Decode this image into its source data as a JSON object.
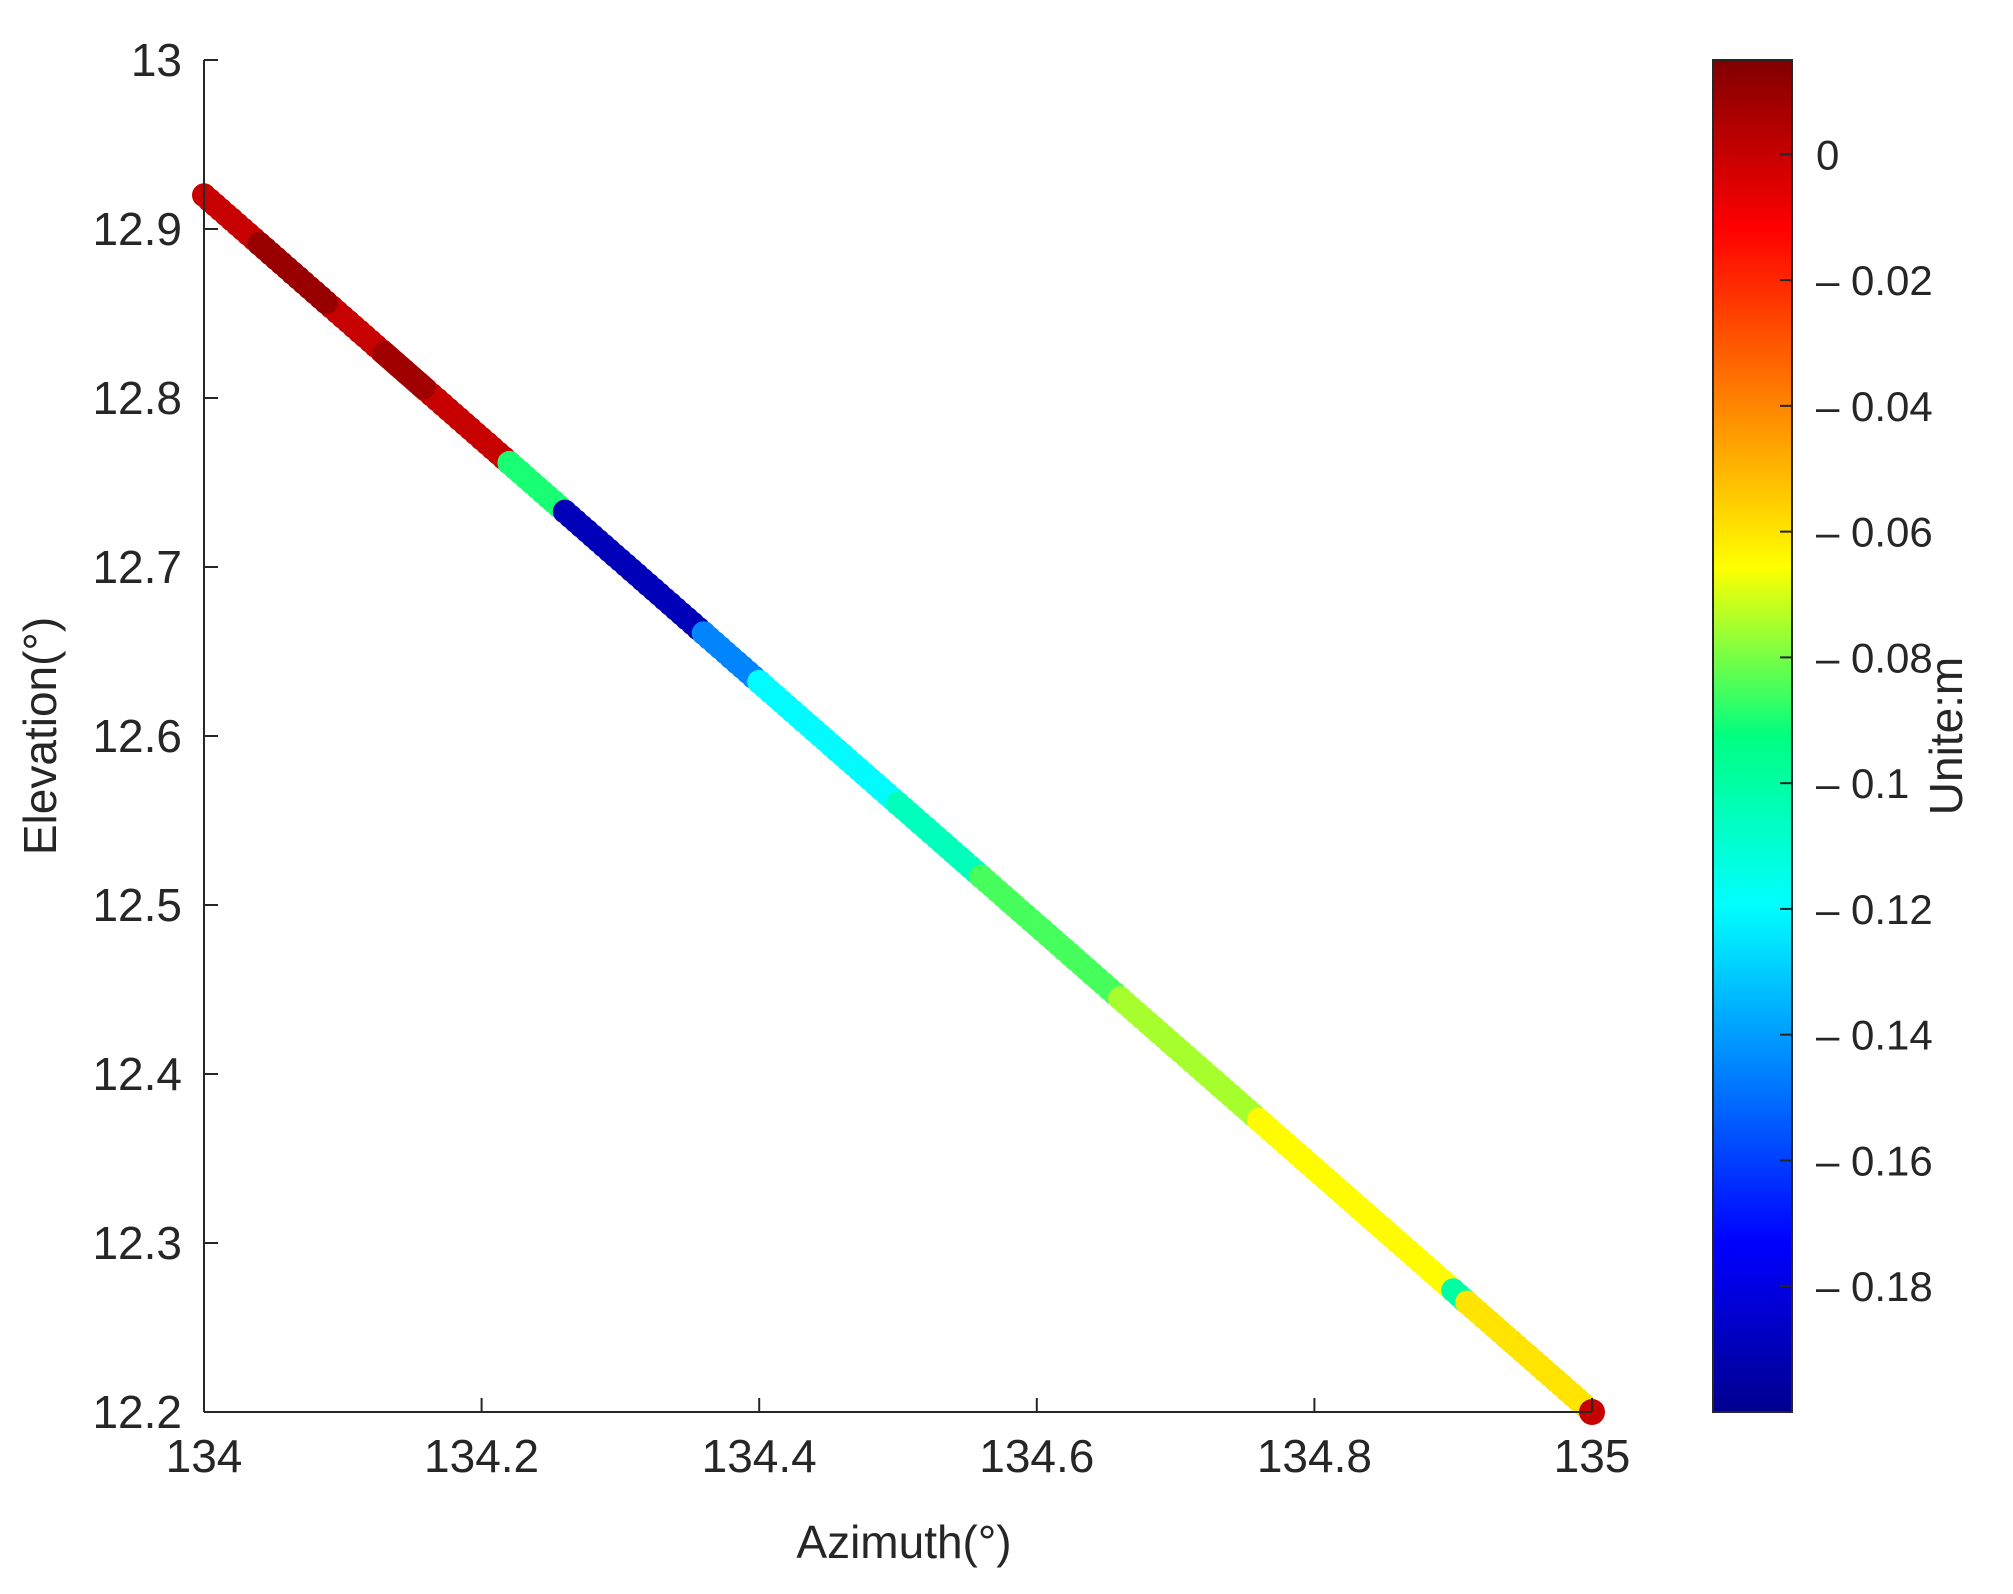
{
  "chart_data": {
    "type": "scatter",
    "title": "",
    "xlabel": "Azimuth(°)",
    "ylabel": "Elevation(°)",
    "xlim": [
      134,
      135
    ],
    "ylim": [
      12.2,
      13.0
    ],
    "x_ticks": [
      "134",
      "134.2",
      "134.4",
      "134.6",
      "134.8",
      "135"
    ],
    "y_ticks": [
      "12.2",
      "12.3",
      "12.4",
      "12.5",
      "12.6",
      "12.7",
      "12.8",
      "12.9",
      "13"
    ],
    "grid": false,
    "colormap": "jet",
    "colorbar": {
      "label": "Unite:m",
      "clim": [
        -0.2,
        0.015
      ],
      "ticks": [
        "0",
        "– 0.02",
        "– 0.04",
        "– 0.06",
        "– 0.08",
        "– 0.1",
        "– 0.12",
        "– 0.14",
        "– 0.16",
        "– 0.18"
      ],
      "tick_values": [
        0,
        -0.02,
        -0.04,
        -0.06,
        -0.08,
        -0.1,
        -0.12,
        -0.14,
        -0.16,
        -0.18
      ],
      "position": "right"
    },
    "segments": [
      {
        "x_start": 134.0,
        "x_end": 134.22,
        "value": 0.0
      },
      {
        "x_start": 134.04,
        "x_end": 134.09,
        "value": 0.01
      },
      {
        "x_start": 134.13,
        "x_end": 134.16,
        "value": 0.008
      },
      {
        "x_start": 134.22,
        "x_end": 134.26,
        "value": -0.09
      },
      {
        "x_start": 134.26,
        "x_end": 134.36,
        "value": -0.19
      },
      {
        "x_start": 134.36,
        "x_end": 134.4,
        "value": -0.145
      },
      {
        "x_start": 134.4,
        "x_end": 134.5,
        "value": -0.12
      },
      {
        "x_start": 134.5,
        "x_end": 134.56,
        "value": -0.105
      },
      {
        "x_start": 134.56,
        "x_end": 134.66,
        "value": -0.085
      },
      {
        "x_start": 134.66,
        "x_end": 134.76,
        "value": -0.075
      },
      {
        "x_start": 134.76,
        "x_end": 134.9,
        "value": -0.065
      },
      {
        "x_start": 134.9,
        "x_end": 134.91,
        "value": -0.1
      },
      {
        "x_start": 134.91,
        "x_end": 135.0,
        "value": -0.06
      }
    ],
    "endpoint": {
      "x": 135.0,
      "y": 12.2,
      "value": 0.0
    }
  }
}
